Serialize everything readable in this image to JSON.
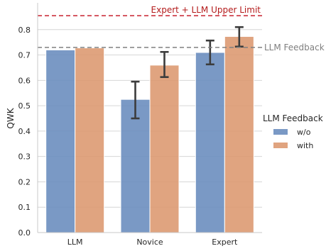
{
  "chart_data": {
    "type": "bar",
    "categories": [
      "LLM",
      "Novice",
      "Expert"
    ],
    "ylabel": "QWK",
    "xlabel": "",
    "ylim": [
      0,
      0.9
    ],
    "yticks": [
      "0.0",
      "0.1",
      "0.2",
      "0.3",
      "0.4",
      "0.5",
      "0.6",
      "0.7",
      "0.8"
    ],
    "grid": "horizontal",
    "series": [
      {
        "name": "w/o",
        "color": "#6c8ebf",
        "values": [
          0.72,
          0.525,
          0.71
        ],
        "err_low": [
          null,
          0.45,
          0.663
        ],
        "err_high": [
          null,
          0.595,
          0.757
        ]
      },
      {
        "name": "with",
        "color": "#dd9a72",
        "values": [
          0.728,
          0.66,
          0.773
        ],
        "err_low": [
          null,
          0.613,
          0.733
        ],
        "err_high": [
          null,
          0.712,
          0.81
        ]
      }
    ],
    "reference_lines": [
      {
        "label": "Expert + LLM Upper Limit",
        "value": 0.855,
        "color": "#c8202f",
        "style": "dashed"
      },
      {
        "label": "LLM Feedback",
        "value": 0.73,
        "color": "#808080",
        "style": "dashed"
      }
    ],
    "legend": {
      "title": "LLM Feedback",
      "placement": "right",
      "entries": [
        "w/o",
        "with"
      ]
    }
  }
}
